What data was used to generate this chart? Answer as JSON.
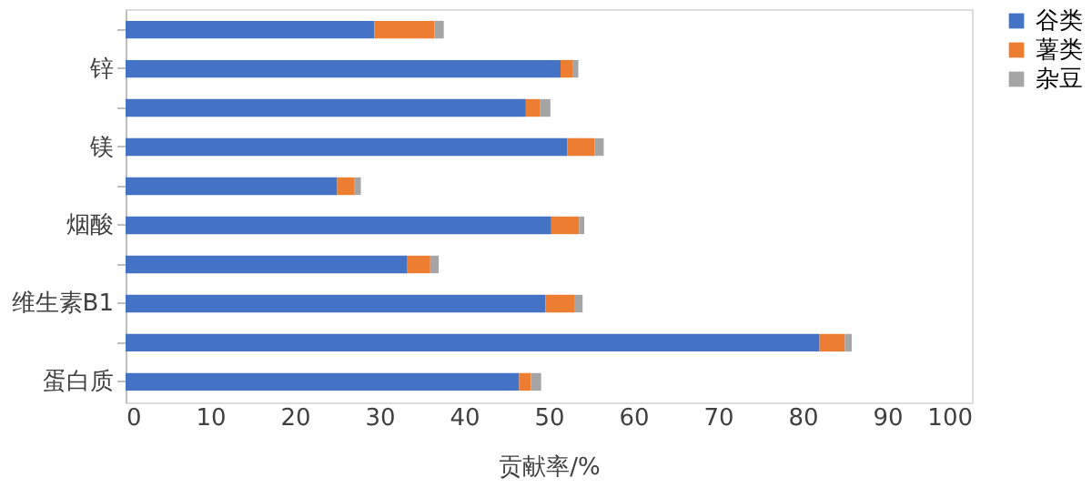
{
  "chart_data": {
    "type": "bar",
    "orientation": "horizontal",
    "stacked": true,
    "xlabel": "贡献率/%",
    "categories": [
      null,
      "锌",
      null,
      "镁",
      null,
      "烟酸",
      null,
      "维生素B1",
      null,
      "蛋白质"
    ],
    "series": [
      {
        "name": "谷类",
        "color": "#4472c4",
        "values": [
          29.4,
          51.4,
          47.3,
          52.2,
          25.0,
          50.3,
          33.3,
          49.6,
          82.0,
          46.5
        ]
      },
      {
        "name": "薯类",
        "color": "#ed7d31",
        "values": [
          7.1,
          1.4,
          1.7,
          3.2,
          2.0,
          3.3,
          2.7,
          3.5,
          3.0,
          1.4
        ]
      },
      {
        "name": "杂豆",
        "color": "#a5a5a5",
        "values": [
          1.1,
          0.7,
          1.2,
          1.1,
          0.8,
          0.6,
          1.0,
          0.9,
          0.8,
          1.2
        ]
      }
    ],
    "xlim": [
      0,
      100
    ],
    "xticks": [
      0,
      10,
      20,
      30,
      40,
      50,
      60,
      70,
      80,
      90,
      100
    ],
    "grid": false,
    "legend": "right"
  }
}
